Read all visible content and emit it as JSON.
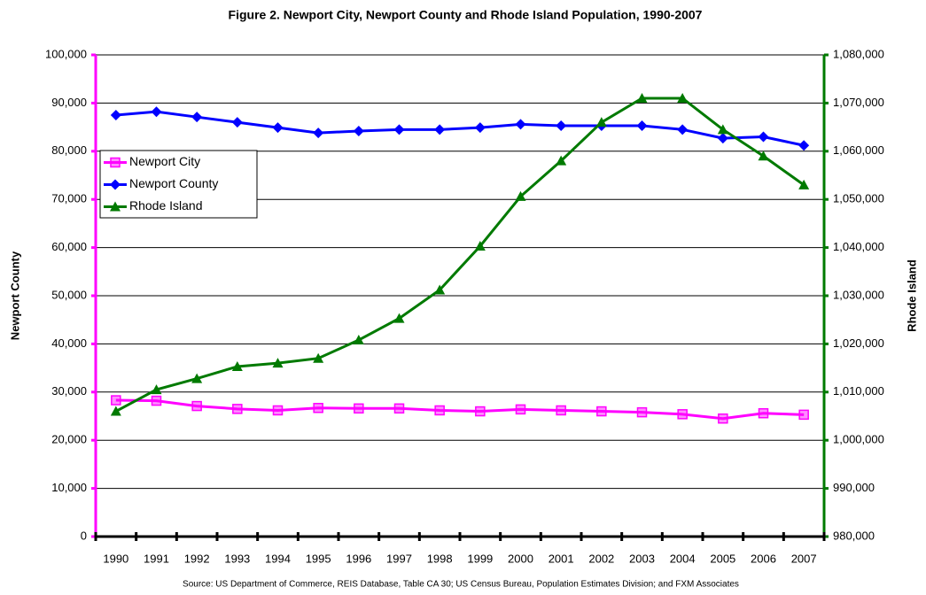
{
  "chart_data": {
    "type": "line",
    "title": "Figure 2.  Newport City, Newport County and Rhode Island Population, 1990-2007",
    "ylabel": "Newport County",
    "y2label": "Rhode Island",
    "source": "Source:  US Department of Commerce, REIS Database, Table CA 30; US Census Bureau, Population Estimates Division; and FXM Associates",
    "categories": [
      "1990",
      "1991",
      "1992",
      "1993",
      "1994",
      "1995",
      "1996",
      "1997",
      "1998",
      "1999",
      "2000",
      "2001",
      "2002",
      "2003",
      "2004",
      "2005",
      "2006",
      "2007"
    ],
    "series": [
      {
        "name": "Newport City",
        "color": "#ff00ff",
        "marker": "square",
        "axis": "y",
        "values": [
          28300,
          28200,
          27100,
          26500,
          26200,
          26700,
          26600,
          26600,
          26200,
          26000,
          26400,
          26200,
          26000,
          25800,
          25400,
          24500,
          25600,
          25300
        ]
      },
      {
        "name": "Newport County",
        "color": "#0000ff",
        "marker": "diamond",
        "axis": "y",
        "values": [
          87500,
          88200,
          87100,
          86000,
          84900,
          83800,
          84200,
          84500,
          84500,
          84900,
          85600,
          85300,
          85300,
          85300,
          84500,
          82700,
          83000,
          81200
        ]
      },
      {
        "name": "Rhode Island",
        "color": "#007a00",
        "marker": "triangle",
        "axis": "y2",
        "values": [
          1006000,
          1010500,
          1012800,
          1015300,
          1016000,
          1017000,
          1020800,
          1025300,
          1031200,
          1040300,
          1050600,
          1058000,
          1066000,
          1071000,
          1071000,
          1064500,
          1059000,
          1053000
        ]
      }
    ],
    "ylim": [
      0,
      100000
    ],
    "yticks": [
      0,
      {
        "value": 10000,
        "label": "10,000"
      },
      {
        "value": 20000,
        "label": "20,000"
      },
      {
        "value": 30000,
        "label": "30,000"
      },
      {
        "value": 40000,
        "label": "40,000"
      },
      {
        "value": 50000,
        "label": "50,000"
      },
      {
        "value": 60000,
        "label": "60,000"
      },
      {
        "value": 70000,
        "label": "70,000"
      },
      {
        "value": 80000,
        "label": "80,000"
      },
      {
        "value": 90000,
        "label": "90,000"
      },
      {
        "value": 100000,
        "label": "100,000"
      }
    ],
    "y2lim": [
      980000,
      1080000
    ],
    "y2ticks": [
      {
        "value": 980000,
        "label": "980,000"
      },
      {
        "value": 990000,
        "label": "990,000"
      },
      {
        "value": 1000000,
        "label": "1,000,000"
      },
      {
        "value": 1010000,
        "label": "1,010,000"
      },
      {
        "value": 1020000,
        "label": "1,020,000"
      },
      {
        "value": 1030000,
        "label": "1,030,000"
      },
      {
        "value": 1040000,
        "label": "1,040,000"
      },
      {
        "value": 1050000,
        "label": "1,050,000"
      },
      {
        "value": 1060000,
        "label": "1,060,000"
      },
      {
        "value": 1070000,
        "label": "1,070,000"
      },
      {
        "value": 1080000,
        "label": "1,080,000"
      }
    ],
    "yaxis_color": "#ff00ff",
    "y2axis_color": "#007a00",
    "grid": true,
    "legend": "upper left"
  }
}
